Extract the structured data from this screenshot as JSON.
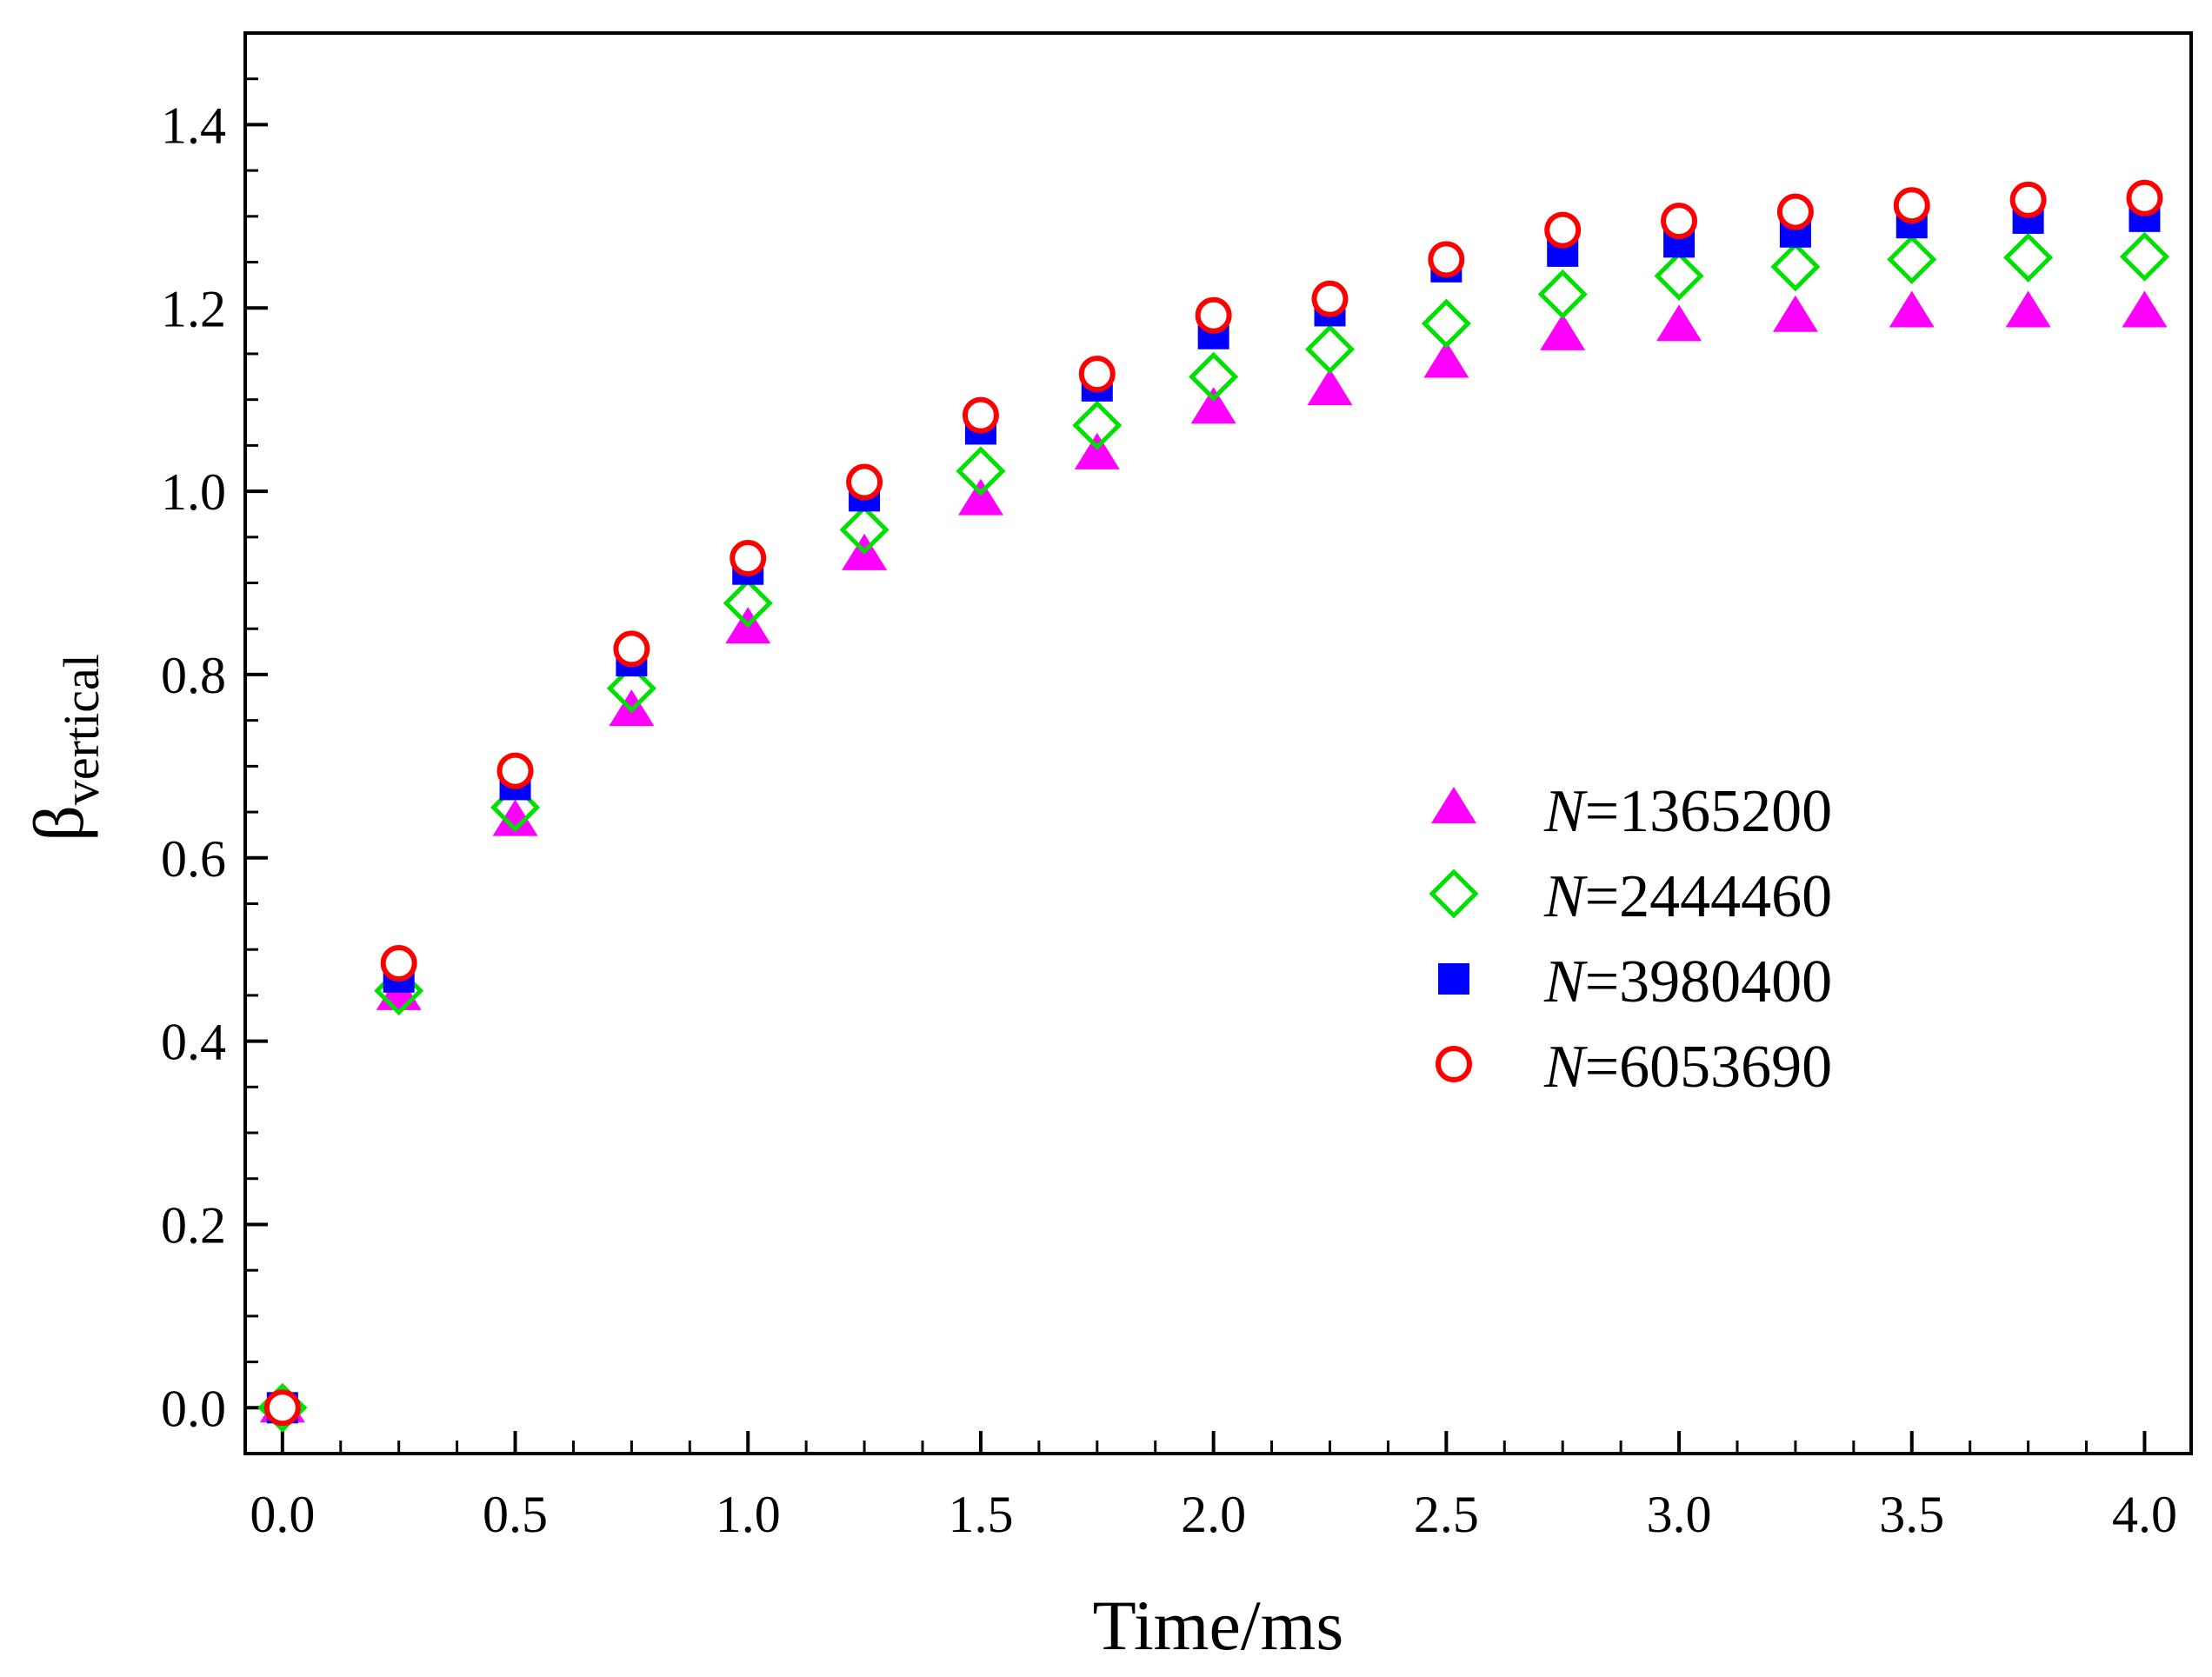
{
  "chart_data": {
    "type": "scatter",
    "title": "",
    "xlabel": "Time/ms",
    "ylabel": "β",
    "ylabel_subscript": "vertical",
    "xlim": [
      -0.08,
      4.1
    ],
    "ylim": [
      -0.05,
      1.5
    ],
    "xticks": [
      0.0,
      0.5,
      1.0,
      1.5,
      2.0,
      2.5,
      3.0,
      3.5,
      4.0
    ],
    "xtick_labels": [
      "0.0",
      "0.5",
      "1.0",
      "1.5",
      "2.0",
      "2.5",
      "3.0",
      "3.5",
      "4.0"
    ],
    "yticks": [
      0.0,
      0.2,
      0.4,
      0.6,
      0.8,
      1.0,
      1.2,
      1.4
    ],
    "ytick_labels": [
      "0.0",
      "0.2",
      "0.4",
      "0.6",
      "0.8",
      "1.0",
      "1.2",
      "1.4"
    ],
    "x": [
      0,
      0.25,
      0.5,
      0.75,
      1.0,
      1.25,
      1.5,
      1.75,
      2.0,
      2.25,
      2.5,
      2.75,
      3.0,
      3.25,
      3.5,
      3.75,
      4.0
    ],
    "legend_position": "center-right",
    "grid": false,
    "series": [
      {
        "name_prefix": "N",
        "name_suffix": "=1365200",
        "marker": "triangle",
        "color": "#FF00FF",
        "values": [
          0.0,
          0.45,
          0.64,
          0.76,
          0.85,
          0.93,
          0.99,
          1.04,
          1.09,
          1.11,
          1.14,
          1.17,
          1.18,
          1.19,
          1.195,
          1.195,
          1.195
        ]
      },
      {
        "name_prefix": "N",
        "name_suffix": "=2444460",
        "marker": "diamond",
        "color": "#00E000",
        "values": [
          0.0,
          0.455,
          0.655,
          0.785,
          0.878,
          0.958,
          1.022,
          1.072,
          1.125,
          1.155,
          1.183,
          1.215,
          1.235,
          1.245,
          1.253,
          1.255,
          1.256
        ]
      },
      {
        "name_prefix": "N",
        "name_suffix": "=3980400",
        "marker": "square",
        "color": "#0000FF",
        "values": [
          0.0,
          0.47,
          0.68,
          0.815,
          0.915,
          0.995,
          1.068,
          1.115,
          1.172,
          1.197,
          1.245,
          1.262,
          1.272,
          1.283,
          1.293,
          1.298,
          1.3
        ]
      },
      {
        "name_prefix": "N",
        "name_suffix": "=6053690",
        "marker": "circle",
        "color": "#FF0000",
        "values": [
          0.0,
          0.485,
          0.695,
          0.828,
          0.927,
          1.01,
          1.083,
          1.128,
          1.192,
          1.21,
          1.253,
          1.285,
          1.295,
          1.305,
          1.312,
          1.318,
          1.32
        ]
      }
    ]
  }
}
